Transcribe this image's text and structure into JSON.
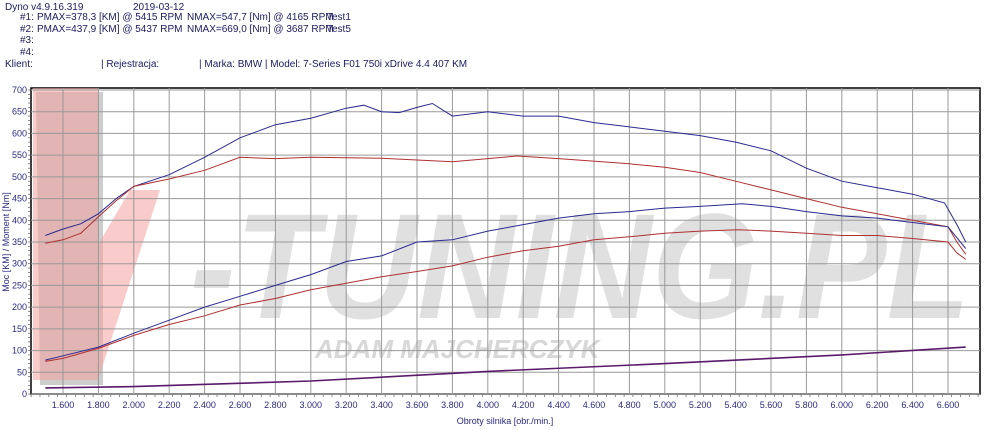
{
  "header": {
    "app": "Dyno v4.9.16.319",
    "date": "2019-03-12",
    "runs": [
      {
        "label": "#1:",
        "pmax": "PMAX=378,3 [KM] @ 5415 RPM",
        "nmax": "NMAX=547,7 [Nm] @ 4165 RPM",
        "name": "Test1"
      },
      {
        "label": "#2:",
        "pmax": "PMAX=437,9 [KM] @ 5437 RPM",
        "nmax": "NMAX=669,0 [Nm] @ 3687 RPM",
        "name": "Test5"
      },
      {
        "label": "#3:",
        "pmax": "",
        "nmax": "",
        "name": ""
      },
      {
        "label": "#4:",
        "pmax": "",
        "nmax": "",
        "name": ""
      }
    ],
    "client": "Klient:",
    "registration": "| Rejestracja:",
    "vehicle": "| Marka: BMW | Model: 7-Series F01 750i xDrive 4.4 407 KM"
  },
  "watermark": {
    "logo": "V-TUNING.PL",
    "name": "ADAM MAJCHERCZYK"
  },
  "chart_data": {
    "type": "line",
    "xlabel": "Obroty silnika [obr./min.]",
    "ylabel": "Moc [KM] / Moment [Nm]",
    "xlim": [
      1420,
      6780
    ],
    "ylim": [
      0,
      700
    ],
    "xticks": [
      1600,
      1800,
      2000,
      2200,
      2400,
      2600,
      2800,
      3000,
      3200,
      3400,
      3600,
      3800,
      4000,
      4200,
      4400,
      4600,
      4800,
      5000,
      5200,
      5400,
      5600,
      5800,
      6000,
      6200,
      6400,
      6600
    ],
    "xtick_labels": [
      "1.600",
      "1.800",
      "2.000",
      "2.200",
      "2.400",
      "2.600",
      "2.800",
      "3.000",
      "3.200",
      "3.400",
      "3.600",
      "3.800",
      "4.000",
      "4.200",
      "4.400",
      "4.600",
      "4.800",
      "5.000",
      "5.200",
      "5.400",
      "5.600",
      "5.800",
      "6.000",
      "6.200",
      "6.400",
      "6.600"
    ],
    "yticks": [
      0,
      50,
      100,
      150,
      200,
      250,
      300,
      350,
      400,
      450,
      500,
      550,
      600,
      650,
      700
    ],
    "grid": true,
    "colors": {
      "test1": "#b03030",
      "test5": "#2a2a90",
      "loss": "#5a1a6a",
      "watermark_v": "#f4a0a0",
      "watermark_text": "#c8c8c8"
    },
    "series": [
      {
        "id": "torque-test5",
        "color": "#2a2a90",
        "points": [
          [
            1500,
            365
          ],
          [
            1600,
            380
          ],
          [
            1700,
            392
          ],
          [
            1800,
            415
          ],
          [
            1900,
            450
          ],
          [
            2000,
            478
          ],
          [
            2200,
            505
          ],
          [
            2400,
            545
          ],
          [
            2600,
            590
          ],
          [
            2800,
            620
          ],
          [
            3000,
            635
          ],
          [
            3200,
            658
          ],
          [
            3300,
            665
          ],
          [
            3400,
            650
          ],
          [
            3500,
            648
          ],
          [
            3600,
            660
          ],
          [
            3687,
            669
          ],
          [
            3800,
            640
          ],
          [
            4000,
            650
          ],
          [
            4200,
            640
          ],
          [
            4400,
            640
          ],
          [
            4600,
            625
          ],
          [
            4800,
            615
          ],
          [
            5000,
            605
          ],
          [
            5200,
            595
          ],
          [
            5400,
            580
          ],
          [
            5600,
            560
          ],
          [
            5800,
            520
          ],
          [
            6000,
            490
          ],
          [
            6200,
            475
          ],
          [
            6400,
            460
          ],
          [
            6580,
            440
          ],
          [
            6650,
            390
          ],
          [
            6700,
            350
          ]
        ]
      },
      {
        "id": "torque-test1",
        "color": "#b03030",
        "points": [
          [
            1500,
            347
          ],
          [
            1600,
            355
          ],
          [
            1700,
            370
          ],
          [
            1800,
            408
          ],
          [
            1900,
            445
          ],
          [
            2000,
            478
          ],
          [
            2200,
            495
          ],
          [
            2400,
            515
          ],
          [
            2600,
            545
          ],
          [
            2800,
            542
          ],
          [
            3000,
            545
          ],
          [
            3400,
            543
          ],
          [
            3800,
            535
          ],
          [
            4165,
            548
          ],
          [
            4400,
            542
          ],
          [
            4800,
            530
          ],
          [
            5000,
            522
          ],
          [
            5200,
            510
          ],
          [
            5400,
            490
          ],
          [
            5600,
            470
          ],
          [
            5800,
            450
          ],
          [
            6000,
            430
          ],
          [
            6200,
            415
          ],
          [
            6400,
            400
          ],
          [
            6600,
            385
          ],
          [
            6650,
            350
          ],
          [
            6700,
            322
          ]
        ]
      },
      {
        "id": "power-test5",
        "color": "#2a2a90",
        "points": [
          [
            1500,
            78
          ],
          [
            1600,
            88
          ],
          [
            1800,
            108
          ],
          [
            2000,
            140
          ],
          [
            2200,
            170
          ],
          [
            2400,
            200
          ],
          [
            2600,
            225
          ],
          [
            2800,
            250
          ],
          [
            3000,
            275
          ],
          [
            3200,
            305
          ],
          [
            3400,
            318
          ],
          [
            3600,
            350
          ],
          [
            3800,
            355
          ],
          [
            4000,
            375
          ],
          [
            4200,
            390
          ],
          [
            4400,
            405
          ],
          [
            4600,
            415
          ],
          [
            4800,
            420
          ],
          [
            5000,
            428
          ],
          [
            5200,
            432
          ],
          [
            5437,
            438
          ],
          [
            5600,
            432
          ],
          [
            5800,
            420
          ],
          [
            6000,
            410
          ],
          [
            6200,
            405
          ],
          [
            6400,
            395
          ],
          [
            6600,
            385
          ],
          [
            6650,
            360
          ],
          [
            6700,
            335
          ]
        ]
      },
      {
        "id": "power-test1",
        "color": "#b03030",
        "points": [
          [
            1500,
            75
          ],
          [
            1600,
            82
          ],
          [
            1800,
            105
          ],
          [
            2000,
            135
          ],
          [
            2200,
            160
          ],
          [
            2400,
            180
          ],
          [
            2600,
            205
          ],
          [
            2800,
            220
          ],
          [
            3000,
            240
          ],
          [
            3200,
            255
          ],
          [
            3400,
            270
          ],
          [
            3600,
            282
          ],
          [
            3800,
            295
          ],
          [
            4000,
            315
          ],
          [
            4200,
            330
          ],
          [
            4400,
            340
          ],
          [
            4600,
            355
          ],
          [
            4800,
            362
          ],
          [
            5000,
            370
          ],
          [
            5200,
            375
          ],
          [
            5415,
            378
          ],
          [
            5600,
            375
          ],
          [
            5800,
            370
          ],
          [
            6000,
            365
          ],
          [
            6200,
            365
          ],
          [
            6400,
            358
          ],
          [
            6600,
            350
          ],
          [
            6650,
            325
          ],
          [
            6700,
            310
          ]
        ]
      },
      {
        "id": "loss",
        "color": "#5a1a6a",
        "points": [
          [
            1500,
            14
          ],
          [
            2000,
            17
          ],
          [
            3000,
            30
          ],
          [
            4000,
            52
          ],
          [
            5000,
            70
          ],
          [
            6000,
            90
          ],
          [
            6700,
            108
          ]
        ]
      }
    ]
  }
}
